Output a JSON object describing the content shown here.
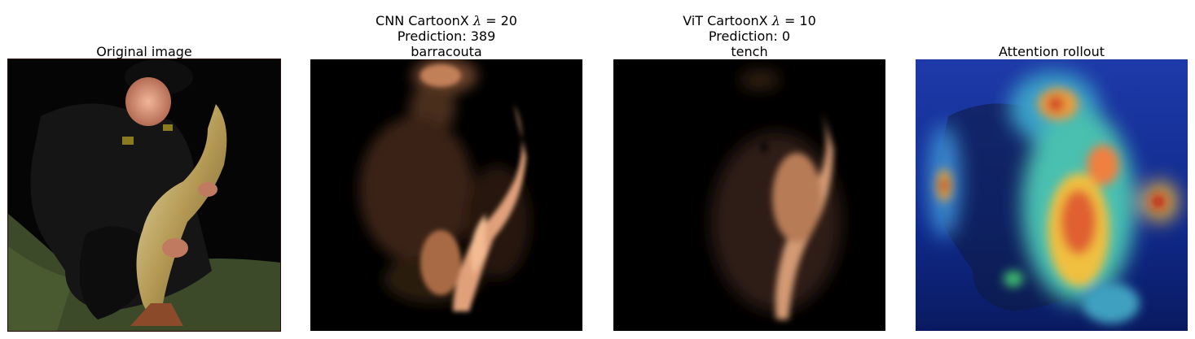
{
  "panels": [
    {
      "id": "original",
      "title_lines": [
        "Original image"
      ],
      "image": "photo of man kneeling at night holding a large pike fish"
    },
    {
      "id": "cnn-cartoonx",
      "title_prefix": "CNN CartoonX ",
      "lambda_symbol": "λ",
      "lambda_value": "= 20",
      "title_lines": [
        "Prediction: 389",
        "barracouta"
      ],
      "image": "copper colormap explanation mask highlighting fish shape"
    },
    {
      "id": "vit-cartoonx",
      "title_prefix": "ViT CartoonX ",
      "lambda_symbol": "λ",
      "lambda_value": "= 10",
      "title_lines": [
        "Prediction: 0",
        "tench"
      ],
      "image": "copper colormap explanation mask highlighting fish body"
    },
    {
      "id": "attention-rollout",
      "title_lines": [
        "Attention rollout"
      ],
      "image": "jet colormap attention heatmap overlaid on photo"
    }
  ]
}
